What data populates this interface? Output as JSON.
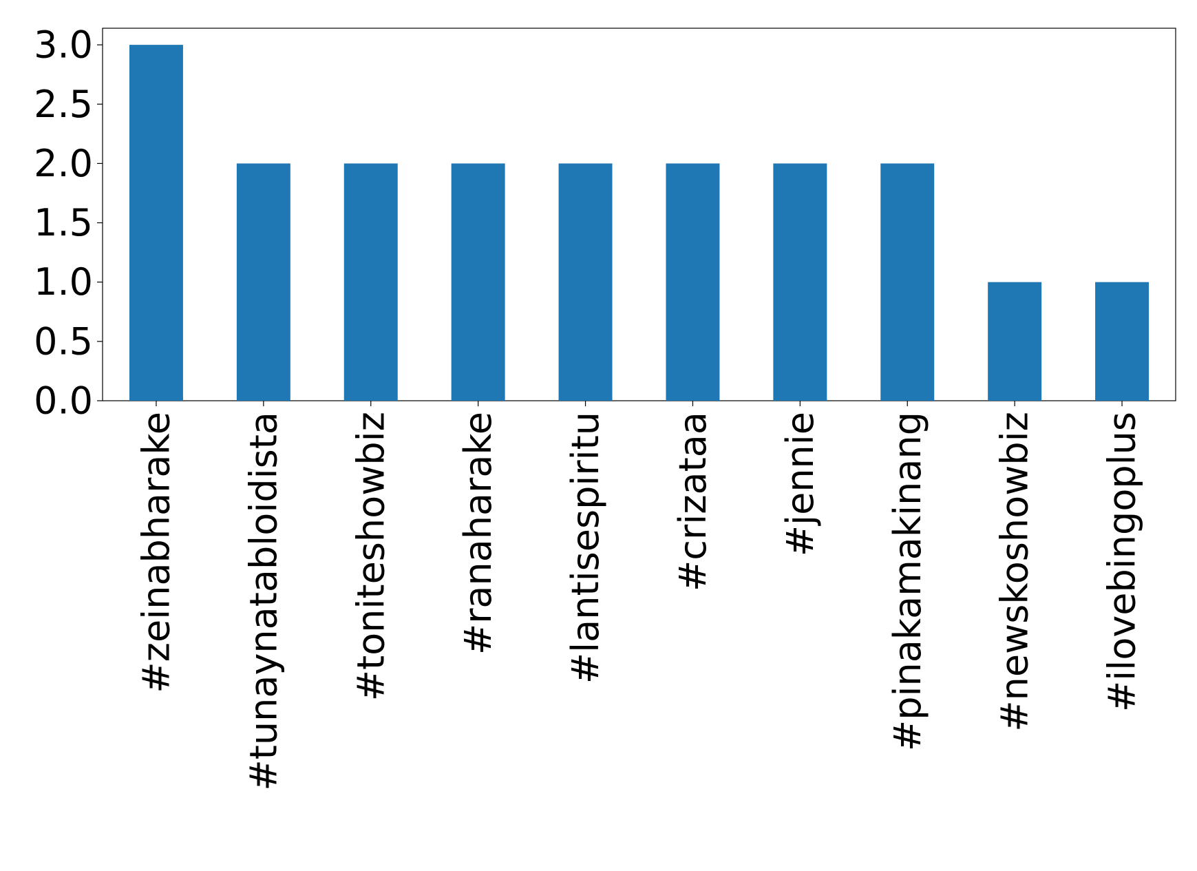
{
  "chart_data": {
    "type": "bar",
    "categories": [
      "#zeinabharake",
      "#tunaynatabloidista",
      "#toniteshowbiz",
      "#ranaharake",
      "#lantisespiritu",
      "#crizataa",
      "#jennie",
      "#pinakamakinang",
      "#newskoshowbiz",
      "#ilovebingoplus"
    ],
    "values": [
      3,
      2,
      2,
      2,
      2,
      2,
      2,
      2,
      1,
      1
    ],
    "color": "#1f77b4",
    "ylim": [
      0,
      3.14
    ],
    "yticks": [
      {
        "value": 0,
        "label": "0.0"
      },
      {
        "value": 0.5,
        "label": "0.5"
      },
      {
        "value": 1,
        "label": "1.0"
      },
      {
        "value": 1.5,
        "label": "1.5"
      },
      {
        "value": 2,
        "label": "2.0"
      },
      {
        "value": 2.5,
        "label": "2.5"
      },
      {
        "value": 3,
        "label": "3.0"
      }
    ],
    "grid": false
  }
}
